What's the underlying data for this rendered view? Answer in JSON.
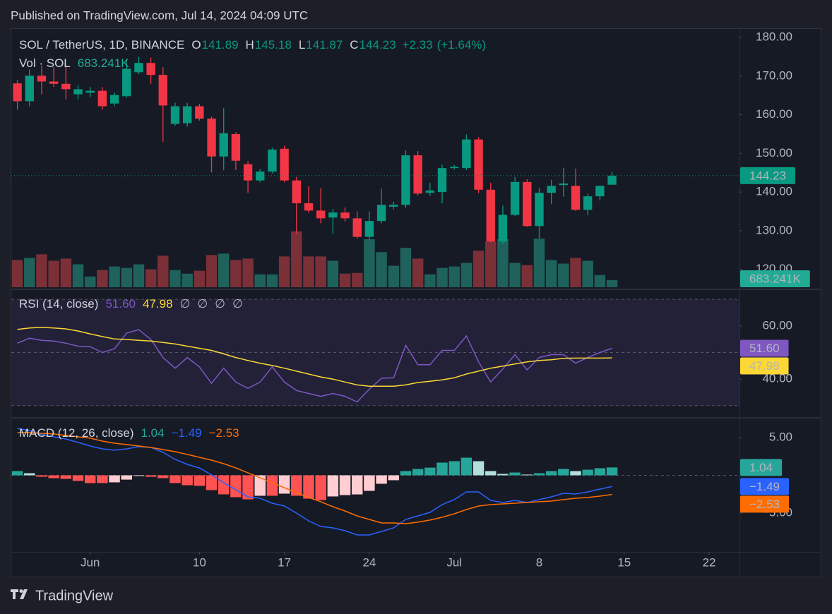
{
  "header": {
    "title": "Published on TradingView.com, Jul 14, 2024 04:09 UTC"
  },
  "footer": {
    "brand": "TradingView"
  },
  "chart_data": [
    {
      "type": "candlestick",
      "title": "SOL / TetherUS, 1D, BINANCE",
      "legend": {
        "labels": [
          "O",
          "H",
          "L",
          "C"
        ],
        "change": {
          "value": 2.33,
          "label": "+2.33"
        },
        "change_percent": {
          "value": 1.64,
          "label": "(+1.64%)"
        }
      },
      "x": [
        "2024-05-26",
        "2024-05-27",
        "2024-05-28",
        "2024-05-29",
        "2024-05-30",
        "2024-05-31",
        "2024-06-01",
        "2024-06-02",
        "2024-06-03",
        "2024-06-04",
        "2024-06-05",
        "2024-06-06",
        "2024-06-07",
        "2024-06-08",
        "2024-06-09",
        "2024-06-10",
        "2024-06-11",
        "2024-06-12",
        "2024-06-13",
        "2024-06-14",
        "2024-06-15",
        "2024-06-16",
        "2024-06-17",
        "2024-06-18",
        "2024-06-19",
        "2024-06-20",
        "2024-06-21",
        "2024-06-22",
        "2024-06-23",
        "2024-06-24",
        "2024-06-25",
        "2024-06-26",
        "2024-06-27",
        "2024-06-28",
        "2024-06-29",
        "2024-06-30",
        "2024-07-01",
        "2024-07-02",
        "2024-07-03",
        "2024-07-04",
        "2024-07-05",
        "2024-07-06",
        "2024-07-07",
        "2024-07-08",
        "2024-07-09",
        "2024-07-10",
        "2024-07-11",
        "2024-07-12",
        "2024-07-13",
        "2024-07-14"
      ],
      "open": [
        168.1,
        163.5,
        170.1,
        168.6,
        168.0,
        165.3,
        165.7,
        166.2,
        162.9,
        164.8,
        171.0,
        173.4,
        170.3,
        157.6,
        157.8,
        162.2,
        159.0,
        149.2,
        155.0,
        147.2,
        143.0,
        145.3,
        151.2,
        143.0,
        137.1,
        135.2,
        133.4,
        134.7,
        133.2,
        128.4,
        132.5,
        136.2,
        136.7,
        149.5,
        139.8,
        140.0,
        146.2,
        146.2,
        153.6,
        140.6,
        127.2,
        134.1,
        142.6,
        131.2,
        139.8,
        141.8,
        141.6,
        135.4,
        138.9,
        141.89
      ],
      "high": [
        169.0,
        171.7,
        172.7,
        172.3,
        172.7,
        167.6,
        167.2,
        167.2,
        165.8,
        174.5,
        175.0,
        174.8,
        172.3,
        163.1,
        163.1,
        162.8,
        159.5,
        161.7,
        155.5,
        148.0,
        146.0,
        151.5,
        152.0,
        143.9,
        141.5,
        141.0,
        135.6,
        136.0,
        135.0,
        135.0,
        140.9,
        137.5,
        150.8,
        150.6,
        142.4,
        147.1,
        147.0,
        154.9,
        154.2,
        142.4,
        136.5,
        143.9,
        143.3,
        141.1,
        143.2,
        146.3,
        146.1,
        139.6,
        141.6,
        145.18
      ],
      "low": [
        161.3,
        162.2,
        165.3,
        167.2,
        164.0,
        164.0,
        164.6,
        161.3,
        162.2,
        164.4,
        170.5,
        168.0,
        153.0,
        157.1,
        156.9,
        158.5,
        145.1,
        145.7,
        145.7,
        139.8,
        142.5,
        144.8,
        142.5,
        129.2,
        134.6,
        131.9,
        129.2,
        132.4,
        128.0,
        127.5,
        131.9,
        135.5,
        135.9,
        139.1,
        139.0,
        137.1,
        145.8,
        145.7,
        139.7,
        127.0,
        126.5,
        133.8,
        131.0,
        128.0,
        136.9,
        138.8,
        135.1,
        134.0,
        137.8,
        141.87
      ],
      "close": [
        163.5,
        170.1,
        168.6,
        168.0,
        166.6,
        166.6,
        166.2,
        162.2,
        165.1,
        171.9,
        173.4,
        170.3,
        162.4,
        162.2,
        162.2,
        159.0,
        149.2,
        155.2,
        148.1,
        143.0,
        145.3,
        151.0,
        143.0,
        137.1,
        135.2,
        133.2,
        134.7,
        133.2,
        128.4,
        132.5,
        136.7,
        136.7,
        149.5,
        139.6,
        140.4,
        146.2,
        146.5,
        153.6,
        140.6,
        127.2,
        134.1,
        142.6,
        131.2,
        139.8,
        141.6,
        142.2,
        135.4,
        138.9,
        141.6,
        144.23
      ],
      "up_color": "#089981",
      "down_color": "#f23645",
      "xlim": [
        "2024-05-25T12:00",
        "2024-07-24T12:00"
      ],
      "xticks": [
        {
          "value": "2024-06-01",
          "label": "Jun"
        },
        {
          "value": "2024-06-10",
          "label": "10"
        },
        {
          "value": "2024-06-17",
          "label": "17"
        },
        {
          "value": "2024-06-24",
          "label": "24"
        },
        {
          "value": "2024-07-01",
          "label": "Jul"
        },
        {
          "value": "2024-07-08",
          "label": "8"
        },
        {
          "value": "2024-07-15",
          "label": "15"
        },
        {
          "value": "2024-07-22",
          "label": "22"
        }
      ],
      "ylim": [
        115,
        182.2
      ],
      "yticks": [
        {
          "value": 120,
          "label": "120.00"
        },
        {
          "value": 130,
          "label": "130.00"
        },
        {
          "value": 140,
          "label": "140.00"
        },
        {
          "value": 150,
          "label": "150.00"
        },
        {
          "value": 160,
          "label": "160.00"
        },
        {
          "value": 170,
          "label": "170.00"
        },
        {
          "value": 180,
          "label": "180.00"
        }
      ],
      "last_price_line": true
    },
    {
      "type": "bar",
      "title": "Vol · SOL",
      "values": [
        2596,
        2801,
        3143,
        2528,
        2733,
        2186,
        1025,
        1640,
        1981,
        1845,
        2186,
        1708,
        3006,
        1640,
        1298,
        1571,
        3075,
        3211,
        2596,
        2733,
        1230,
        1230,
        2938,
        5329,
        2938,
        2938,
        2528,
        1298,
        1366,
        4578,
        3348,
        2050,
        3758,
        2733,
        1230,
        1845,
        1981,
        2323,
        3485,
        4373,
        4578,
        2323,
        2118,
        4646,
        2596,
        2255,
        2801,
        2528,
        1162,
        683.241
      ],
      "last_label": "683.241K",
      "up_color": "#1e625b",
      "down_color": "#7b3037",
      "badge_color": "#22ab94"
    },
    {
      "type": "line",
      "title": "RSI (14, close)",
      "series": [
        {
          "color": "#7e57c2",
          "last_label": "51.60",
          "values": [
            53.5,
            55.4,
            54.6,
            54.3,
            53.5,
            52.4,
            52.2,
            50.0,
            51.4,
            57.3,
            58.6,
            54.9,
            48.1,
            44.1,
            48.1,
            44.6,
            38.4,
            44.1,
            38.9,
            36.5,
            38.9,
            44.6,
            38.9,
            35.7,
            34.6,
            33.5,
            34.6,
            33.5,
            31.4,
            36.2,
            40.3,
            40.5,
            52.7,
            45.4,
            45.4,
            50.8,
            50.8,
            56.2,
            46.5,
            38.9,
            43.8,
            49.2,
            43.5,
            48.1,
            49.2,
            49.2,
            46.0,
            48.1,
            50.0,
            51.6
          ]
        },
        {
          "color": "#fdd835",
          "last_label": "47.98",
          "values": [
            58.7,
            59.2,
            59.5,
            59.2,
            58.9,
            58.1,
            57.0,
            56.0,
            55.1,
            54.9,
            54.6,
            54.3,
            53.8,
            53.2,
            52.4,
            51.6,
            50.8,
            49.5,
            48.1,
            47.0,
            46.0,
            45.1,
            44.1,
            43.0,
            41.9,
            40.8,
            40.0,
            38.9,
            37.8,
            37.3,
            37.3,
            37.3,
            37.8,
            38.7,
            39.2,
            39.7,
            40.5,
            41.9,
            43.0,
            44.1,
            44.9,
            45.7,
            46.5,
            47.0,
            47.3,
            47.8,
            47.9,
            47.9,
            47.9,
            47.98
          ]
        }
      ],
      "placeholders": [
        "∅",
        "∅",
        "∅",
        "∅"
      ],
      "ylim": [
        25.7,
        73.5
      ],
      "yticks": [
        {
          "value": 40,
          "label": "40.00"
        },
        {
          "value": 60,
          "label": "60.00"
        }
      ],
      "levels": [
        30,
        50,
        70
      ],
      "band_color": "rgba(126,87,194,0.12)"
    },
    {
      "type": "line",
      "title": "MACD (12, 26, close)",
      "series": [
        {
          "kind": "histogram",
          "colors": [
            "#26a69a",
            "#b2dfdb",
            "#ffcdd2",
            "#ff5252"
          ],
          "last_label": "1.04",
          "values": [
            0.56,
            0.28,
            -0.19,
            -0.38,
            -0.47,
            -0.74,
            -1.03,
            -1.03,
            -0.93,
            -0.57,
            -0.09,
            -0.2,
            -0.37,
            -1.03,
            -1.31,
            -1.4,
            -1.96,
            -2.52,
            -2.9,
            -3.18,
            -2.71,
            -2.71,
            -2.43,
            -2.71,
            -3.09,
            -3.28,
            -2.8,
            -2.62,
            -2.53,
            -2.06,
            -1.12,
            -0.65,
            0.56,
            0.84,
            1.02,
            1.68,
            1.87,
            2.33,
            1.87,
            0.56,
            0.19,
            0.37,
            0.1,
            0.28,
            0.56,
            0.84,
            0.56,
            0.74,
            0.94,
            1.04
          ]
        },
        {
          "color": "#2962ff",
          "last_label": "−1.49",
          "values": [
            6.21,
            5.93,
            5.37,
            5.09,
            4.81,
            4.35,
            3.88,
            3.5,
            3.32,
            3.5,
            3.79,
            3.69,
            3.04,
            2.1,
            1.45,
            0.98,
            0.05,
            -0.98,
            -1.92,
            -2.85,
            -3.04,
            -3.69,
            -4.07,
            -5.0,
            -6.03,
            -6.78,
            -6.96,
            -7.34,
            -7.9,
            -7.9,
            -7.43,
            -6.96,
            -5.84,
            -5.37,
            -4.91,
            -3.88,
            -3.22,
            -2.2,
            -2.2,
            -3.32,
            -3.6,
            -3.32,
            -3.6,
            -3.22,
            -2.85,
            -2.38,
            -2.48,
            -2.2,
            -1.82,
            -1.49
          ]
        },
        {
          "color": "#ff6d00",
          "last_label": "−2.53",
          "values": [
            5.65,
            5.65,
            5.56,
            5.47,
            5.28,
            5.09,
            4.91,
            4.53,
            4.25,
            4.07,
            3.88,
            3.69,
            3.41,
            3.13,
            2.76,
            2.38,
            2.01,
            1.54,
            0.98,
            0.33,
            -0.33,
            -0.98,
            -1.64,
            -2.29,
            -2.94,
            -3.5,
            -4.16,
            -4.72,
            -5.37,
            -5.84,
            -6.31,
            -6.31,
            -6.4,
            -6.21,
            -5.93,
            -5.56,
            -5.09,
            -4.53,
            -4.07,
            -3.88,
            -3.79,
            -3.69,
            -3.6,
            -3.5,
            -3.41,
            -3.22,
            -3.04,
            -2.94,
            -2.76,
            -2.53
          ]
        }
      ],
      "ylim": [
        -10.14,
        7.52
      ],
      "yticks": [
        {
          "value": -5,
          "label": "−5.00"
        },
        {
          "value": 5,
          "label": "5.00"
        }
      ],
      "levels": [
        0
      ]
    }
  ]
}
